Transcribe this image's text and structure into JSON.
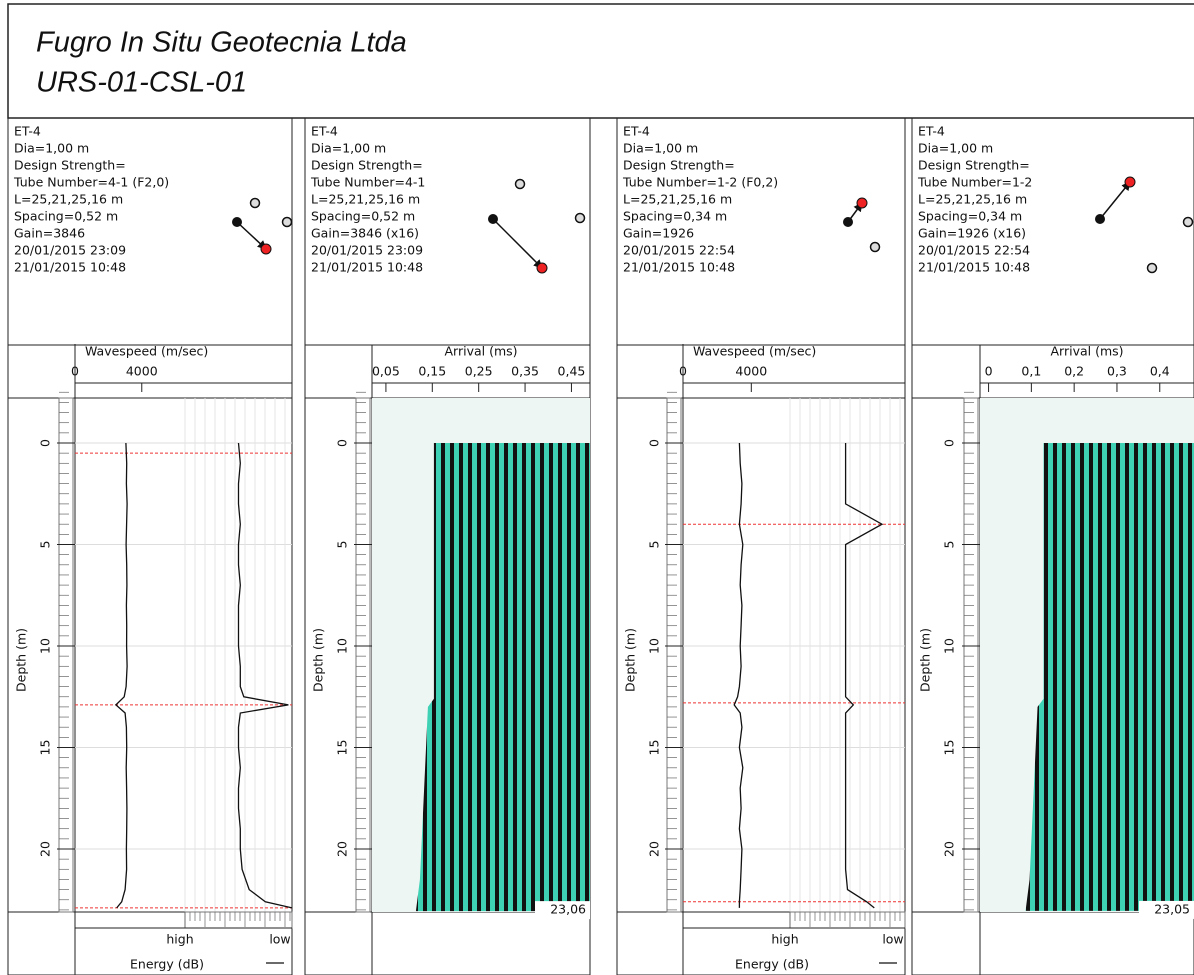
{
  "chart_data": {
    "type": "csl-log",
    "header": {
      "company": "Fugro In Situ Geotecnia Ltda",
      "title": "URS-01-CSL-01"
    },
    "panels": [
      {
        "kind": "speed",
        "info": [
          "ET-4",
          "Dia=1,00 m",
          "Design Strength=",
          "Tube Number=4-1 (F2,0)",
          "L=25,21,25,16 m",
          "Spacing=0,52 m",
          "Gain=3846",
          "20/01/2015 23:09",
          "21/01/2015 10:48"
        ],
        "axis_title": "Wavespeed (m/sec)",
        "xlim": [
          0,
          13000
        ],
        "xticks": [
          0,
          4000
        ],
        "depth_label": "Depth (m)",
        "depth_ticks": [
          0,
          5,
          10,
          15,
          20
        ],
        "depth": [
          0,
          1,
          2,
          3,
          4,
          5,
          6,
          7,
          8,
          9,
          10,
          11,
          12,
          12.5,
          12.9,
          13.3,
          14,
          15,
          16,
          17,
          18,
          19,
          20,
          21,
          22,
          22.6,
          22.9
        ],
        "wavespeed": [
          3050,
          3100,
          3080,
          3120,
          3090,
          3060,
          3100,
          3110,
          3080,
          3100,
          3090,
          3120,
          3060,
          2950,
          2450,
          3000,
          3080,
          3100,
          3070,
          3090,
          3110,
          3100,
          3080,
          3090,
          3000,
          2800,
          2500
        ],
        "energy": [
          30,
          31,
          30,
          30,
          31,
          30,
          30,
          31,
          30,
          30,
          30,
          31,
          31,
          33,
          58,
          31,
          30,
          30,
          31,
          30,
          30,
          31,
          31,
          32,
          36,
          45,
          60
        ],
        "anomalies": [
          0.5,
          12.9,
          22.9
        ],
        "energy_high": "high",
        "energy_low": "low",
        "energy_title": "Energy (dB)"
      },
      {
        "kind": "waterfall",
        "info": [
          "ET-4",
          "Dia=1,00 m",
          "Design Strength=",
          "Tube Number=4-1",
          "L=25,21,25,16 m",
          "Spacing=0,52 m",
          "Gain=3846 (x16)",
          "20/01/2015 23:09",
          "21/01/2015 10:48"
        ],
        "axis_title": "Arrival (ms)",
        "xlim": [
          0.02,
          0.49
        ],
        "xticks": [
          {
            "value": 0.05,
            "label": "0,05"
          },
          {
            "value": 0.15,
            "label": "0,15"
          },
          {
            "value": 0.25,
            "label": "0,25"
          },
          {
            "value": 0.35,
            "label": "0,35"
          },
          {
            "value": 0.45,
            "label": "0,45"
          }
        ],
        "depth_label": "Depth (m)",
        "depth_ticks": [
          0,
          5,
          10,
          15,
          20
        ],
        "end_depth": {
          "value": 23.06,
          "label": "23,06"
        }
      },
      {
        "kind": "speed",
        "info": [
          "ET-4",
          "Dia=1,00 m",
          "Design Strength=",
          "Tube Number=1-2 (F0,2)",
          "L=25,21,25,16 m",
          "Spacing=0,34 m",
          "Gain=1926",
          "20/01/2015 22:54",
          "21/01/2015 10:48"
        ],
        "axis_title": "Wavespeed (m/sec)",
        "xlim": [
          0,
          13000
        ],
        "xticks": [
          0,
          4000
        ],
        "depth_label": "Depth (m)",
        "depth_ticks": [
          0,
          5,
          10,
          15,
          20
        ],
        "depth": [
          0,
          1,
          2,
          3,
          4,
          5,
          6,
          7,
          8,
          9,
          10,
          11,
          12,
          12.5,
          12.9,
          13.3,
          14,
          15,
          16,
          17,
          18,
          19,
          20,
          21,
          22,
          22.6,
          22.9
        ],
        "wavespeed": [
          3300,
          3350,
          3450,
          3400,
          3300,
          3500,
          3400,
          3350,
          3450,
          3400,
          3350,
          3400,
          3300,
          3200,
          3000,
          3350,
          3450,
          3300,
          3500,
          3350,
          3400,
          3300,
          3450,
          3400,
          3350,
          3300,
          3300
        ],
        "energy": [
          29,
          29,
          29,
          29,
          48,
          29,
          29,
          29,
          29,
          29,
          29,
          29,
          29,
          29,
          33,
          29,
          29,
          29,
          29,
          29,
          29,
          29,
          29,
          29,
          30,
          40,
          44
        ],
        "anomalies": [
          4.0,
          12.8,
          22.6
        ],
        "energy_high": "high",
        "energy_low": "low",
        "energy_title": "Energy (dB)"
      },
      {
        "kind": "waterfall",
        "info": [
          "ET-4",
          "Dia=1,00 m",
          "Design Strength=",
          "Tube Number=1-2",
          "L=25,21,25,16 m",
          "Spacing=0,34 m",
          "Gain=1926 (x16)",
          "20/01/2015 22:54",
          "21/01/2015 10:48"
        ],
        "axis_title": "Arrival (ms)",
        "xlim": [
          -0.02,
          0.48
        ],
        "xticks": [
          0,
          {
            "value": 0.1,
            "label": "0,1"
          },
          {
            "value": 0.2,
            "label": "0,2"
          },
          {
            "value": 0.3,
            "label": "0,3"
          },
          {
            "value": 0.4,
            "label": "0,4"
          }
        ],
        "depth_label": "Depth (m)",
        "depth_ticks": [
          0,
          5,
          10,
          15,
          20
        ],
        "end_depth": {
          "value": 23.05,
          "label": "23,05"
        }
      }
    ]
  }
}
